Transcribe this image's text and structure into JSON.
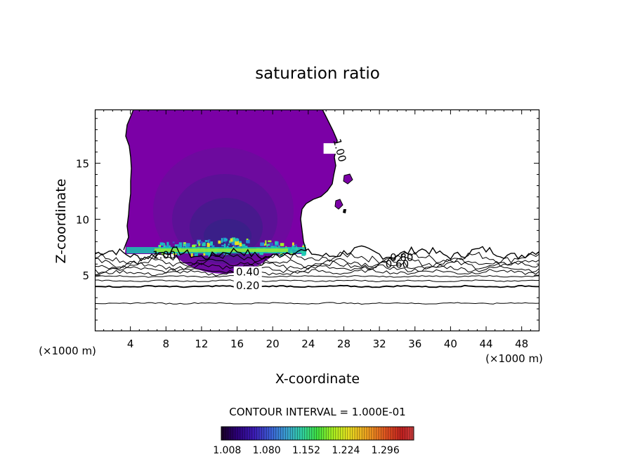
{
  "chart_data": {
    "type": "contour",
    "title": "saturation ratio",
    "xlabel": "X-coordinate",
    "ylabel": "Z-coordinate",
    "x_unit_left": "(×1000 m)",
    "x_unit_right": "(×1000 m)",
    "xlim": [
      0,
      50
    ],
    "ylim": [
      0,
      19.8
    ],
    "x_ticks": [
      4,
      8,
      12,
      16,
      20,
      24,
      28,
      32,
      36,
      40,
      44,
      48
    ],
    "y_ticks": [
      5,
      10,
      15
    ],
    "contour_interval_text": "CONTOUR INTERVAL = 1.000E-01",
    "contour_labels": [
      {
        "text": "1.00",
        "x": 7.8,
        "y": 6.6
      },
      {
        "text": "1.00",
        "x": 27.3,
        "y": 16.1
      },
      {
        "text": "0.40",
        "x": 17.2,
        "y": 5.1
      },
      {
        "text": "0.20",
        "x": 17.2,
        "y": 3.9
      },
      {
        "text": "0.80",
        "x": 34.5,
        "y": 6.4
      },
      {
        "text": "0.60",
        "x": 34.0,
        "y": 5.8
      }
    ],
    "colorbar": {
      "min": 1.0,
      "max": 1.35,
      "tick_labels": [
        "1.008",
        "1.080",
        "1.152",
        "1.224",
        "1.296"
      ],
      "colors": [
        "#1a0025",
        "#2c0078",
        "#3c1bb5",
        "#3b62d6",
        "#3aa0d0",
        "#30d0a0",
        "#40e040",
        "#a8ef20",
        "#e7e020",
        "#f0a020",
        "#e05020",
        "#c02020",
        "#d04040"
      ]
    },
    "fill_colors": {
      "supersaturated_base": "#7b00a6",
      "core_layers": [
        "#6d0a9e",
        "#5b1196",
        "#48198d",
        "#3a1f88"
      ]
    }
  }
}
